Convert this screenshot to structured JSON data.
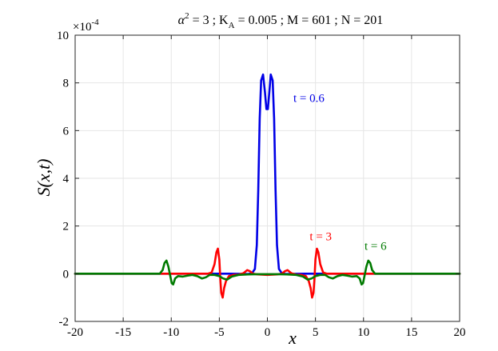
{
  "chart_data": {
    "type": "line",
    "title": "α² = 3 ; K_A = 0.005 ; M = 601 ; N = 201",
    "title_parts": {
      "alpha": "α",
      "alpha_sup": "2",
      "alpha_rest": " = 3  ;  K",
      "k_sub": "A",
      "rest": " = 0.005  ;  M = 601  ;  N = 201"
    },
    "xlabel": "x",
    "ylabel": "S(x,t)",
    "y_exponent_label": "×10",
    "y_exponent_power": "-4",
    "xlim": [
      -20,
      20
    ],
    "ylim": [
      -2,
      10
    ],
    "xticks": [
      -20,
      -15,
      -10,
      -5,
      0,
      5,
      10,
      15,
      20
    ],
    "yticks": [
      -2,
      0,
      2,
      4,
      6,
      8,
      10
    ],
    "grid": true,
    "legend": "none",
    "series": [
      {
        "name": "t = 0.6",
        "color": "#0000e6",
        "points": [
          [
            -20,
            0
          ],
          [
            -4,
            0
          ],
          [
            -2,
            -0.01
          ],
          [
            -1.6,
            0.02
          ],
          [
            -1.3,
            0.2
          ],
          [
            -1.1,
            1.2
          ],
          [
            -0.95,
            3.5
          ],
          [
            -0.8,
            6.5
          ],
          [
            -0.65,
            8.1
          ],
          [
            -0.45,
            8.35
          ],
          [
            -0.25,
            7.6
          ],
          [
            -0.1,
            6.9
          ],
          [
            0.05,
            6.9
          ],
          [
            0.2,
            7.6
          ],
          [
            0.35,
            8.35
          ],
          [
            0.55,
            8.1
          ],
          [
            0.7,
            6.5
          ],
          [
            0.85,
            3.5
          ],
          [
            1.0,
            1.2
          ],
          [
            1.2,
            0.2
          ],
          [
            1.5,
            0.02
          ],
          [
            1.9,
            -0.01
          ],
          [
            4,
            0
          ],
          [
            20,
            0
          ]
        ]
      },
      {
        "name": "t = 3",
        "color": "#ff0000",
        "points": [
          [
            -20,
            0
          ],
          [
            -6.2,
            0
          ],
          [
            -5.8,
            0.05
          ],
          [
            -5.5,
            0.4
          ],
          [
            -5.3,
            0.9
          ],
          [
            -5.15,
            1.05
          ],
          [
            -5.0,
            0.6
          ],
          [
            -4.9,
            -0.2
          ],
          [
            -4.8,
            -0.8
          ],
          [
            -4.65,
            -1.0
          ],
          [
            -4.5,
            -0.6
          ],
          [
            -4.3,
            -0.3
          ],
          [
            -4.0,
            -0.1
          ],
          [
            -3.5,
            -0.05
          ],
          [
            -3.0,
            -0.04
          ],
          [
            -2.5,
            0.02
          ],
          [
            -2.1,
            0.15
          ],
          [
            -1.8,
            0.1
          ],
          [
            -1.5,
            0.0
          ],
          [
            -1.0,
            -0.03
          ],
          [
            0,
            -0.05
          ],
          [
            1.0,
            -0.03
          ],
          [
            1.5,
            0.0
          ],
          [
            1.8,
            0.1
          ],
          [
            2.1,
            0.15
          ],
          [
            2.5,
            0.02
          ],
          [
            3.0,
            -0.04
          ],
          [
            3.5,
            -0.05
          ],
          [
            4.0,
            -0.1
          ],
          [
            4.3,
            -0.3
          ],
          [
            4.5,
            -0.6
          ],
          [
            4.65,
            -1.0
          ],
          [
            4.8,
            -0.8
          ],
          [
            4.9,
            -0.2
          ],
          [
            5.0,
            0.6
          ],
          [
            5.15,
            1.05
          ],
          [
            5.3,
            0.9
          ],
          [
            5.5,
            0.4
          ],
          [
            5.8,
            0.05
          ],
          [
            6.2,
            0
          ],
          [
            20,
            0
          ]
        ]
      },
      {
        "name": "t = 6",
        "color": "#007a00",
        "points": [
          [
            -20,
            0
          ],
          [
            -11.2,
            0
          ],
          [
            -10.9,
            0.15
          ],
          [
            -10.7,
            0.45
          ],
          [
            -10.5,
            0.55
          ],
          [
            -10.3,
            0.3
          ],
          [
            -10.1,
            -0.1
          ],
          [
            -9.95,
            -0.4
          ],
          [
            -9.8,
            -0.45
          ],
          [
            -9.6,
            -0.2
          ],
          [
            -9.3,
            -0.1
          ],
          [
            -8.8,
            -0.12
          ],
          [
            -8.3,
            -0.08
          ],
          [
            -7.8,
            -0.05
          ],
          [
            -7.3,
            -0.1
          ],
          [
            -6.8,
            -0.2
          ],
          [
            -6.4,
            -0.15
          ],
          [
            -6.0,
            -0.05
          ],
          [
            -5.5,
            -0.05
          ],
          [
            -5.0,
            -0.1
          ],
          [
            -4.6,
            -0.2
          ],
          [
            -4.2,
            -0.25
          ],
          [
            -3.7,
            -0.12
          ],
          [
            -3.0,
            -0.05
          ],
          [
            -2.0,
            -0.03
          ],
          [
            -1.0,
            -0.02
          ],
          [
            0,
            -0.02
          ],
          [
            1.0,
            -0.02
          ],
          [
            2.0,
            -0.03
          ],
          [
            3.0,
            -0.05
          ],
          [
            3.7,
            -0.12
          ],
          [
            4.2,
            -0.25
          ],
          [
            4.6,
            -0.2
          ],
          [
            5.0,
            -0.1
          ],
          [
            5.5,
            -0.05
          ],
          [
            6.0,
            -0.05
          ],
          [
            6.4,
            -0.15
          ],
          [
            6.8,
            -0.2
          ],
          [
            7.3,
            -0.1
          ],
          [
            7.8,
            -0.05
          ],
          [
            8.3,
            -0.08
          ],
          [
            8.8,
            -0.12
          ],
          [
            9.3,
            -0.1
          ],
          [
            9.6,
            -0.2
          ],
          [
            9.8,
            -0.45
          ],
          [
            9.95,
            -0.4
          ],
          [
            10.1,
            -0.1
          ],
          [
            10.3,
            0.3
          ],
          [
            10.5,
            0.55
          ],
          [
            10.7,
            0.45
          ],
          [
            10.9,
            0.15
          ],
          [
            11.2,
            0
          ],
          [
            20,
            0
          ]
        ]
      }
    ],
    "annotations": [
      {
        "text": "t = 0.6",
        "x": 2.7,
        "y": 7.2,
        "color": "#0000e6"
      },
      {
        "text": "t = 3",
        "x": 4.4,
        "y": 1.4,
        "color": "#ff0000"
      },
      {
        "text": "t = 6",
        "x": 10.1,
        "y": 1.0,
        "color": "#007a00"
      }
    ]
  }
}
